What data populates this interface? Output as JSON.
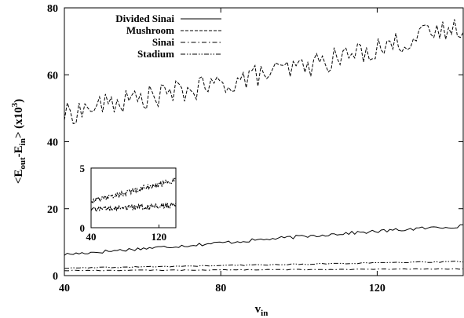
{
  "chart_data": {
    "type": "line",
    "xlabel": "v",
    "xlabel_sub": "in",
    "ylabel_parts": [
      "<E",
      "out",
      "-E",
      "in",
      "> (x10",
      "3",
      ")"
    ],
    "xlim": [
      40,
      142
    ],
    "ylim": [
      0,
      80
    ],
    "xticks": [
      40,
      80,
      120
    ],
    "yticks": [
      0,
      20,
      40,
      60,
      80
    ],
    "legend_position": "top-left",
    "grid": false,
    "series": [
      {
        "name": "Divided Sinai",
        "dash": "solid",
        "x": [
          40,
          50,
          60,
          70,
          80,
          90,
          100,
          110,
          120,
          130,
          140,
          142
        ],
        "y": [
          6.3,
          7.2,
          8.1,
          8.9,
          9.8,
          10.7,
          11.6,
          12.5,
          13.2,
          14.0,
          14.7,
          14.8
        ]
      },
      {
        "name": "Mushroom",
        "dash": "dashed",
        "x": [
          40,
          50,
          60,
          70,
          80,
          90,
          100,
          110,
          120,
          130,
          140,
          142
        ],
        "y": [
          48,
          51,
          53,
          55,
          57,
          60,
          62,
          65,
          68,
          71,
          74,
          75
        ]
      },
      {
        "name": "Sinai",
        "dash": "dashdot",
        "x": [
          40,
          60,
          80,
          100,
          120,
          142
        ],
        "y": [
          1.5,
          1.6,
          1.7,
          1.8,
          1.9,
          2.0
        ]
      },
      {
        "name": "Stadium",
        "dash": "dashdotdot",
        "x": [
          40,
          60,
          80,
          100,
          120,
          142
        ],
        "y": [
          2.2,
          2.6,
          3.0,
          3.4,
          3.8,
          4.2
        ]
      }
    ],
    "inset": {
      "xlim": [
        40,
        140
      ],
      "ylim": [
        0,
        5
      ],
      "xticks": [
        40,
        120
      ],
      "yticks": [
        0,
        5
      ],
      "series": [
        {
          "name": "Sinai",
          "x": [
            40,
            140
          ],
          "y": [
            1.5,
            1.9
          ]
        },
        {
          "name": "Stadium",
          "x": [
            40,
            140
          ],
          "y": [
            2.2,
            4.0
          ]
        }
      ]
    }
  }
}
